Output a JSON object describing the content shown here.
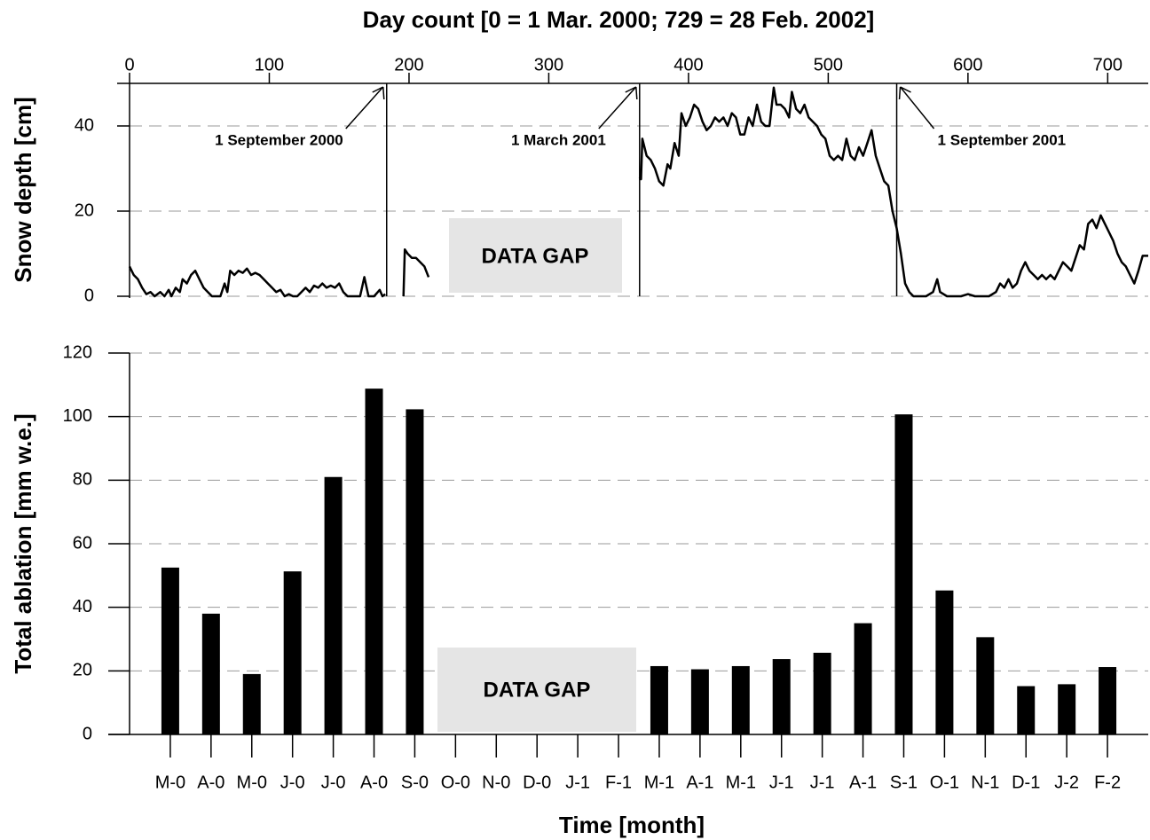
{
  "chart_data": [
    {
      "type": "line",
      "title": "Day count [0 = 1 Mar. 2000; 729 = 28 Feb. 2002]",
      "y_label": "Snow depth [cm]",
      "x_axis_position": "top",
      "x": [
        0,
        3,
        6,
        9,
        12,
        15,
        18,
        22,
        25,
        28,
        30,
        33,
        36,
        38,
        41,
        44,
        47,
        50,
        53,
        56,
        59,
        62,
        65,
        68,
        70,
        72,
        75,
        78,
        81,
        84,
        87,
        90,
        93,
        96,
        99,
        102,
        105,
        108,
        111,
        114,
        117,
        120,
        123,
        126,
        129,
        132,
        135,
        138,
        141,
        144,
        147,
        150,
        153,
        156,
        160,
        165,
        168,
        171,
        175,
        179,
        181,
        183,
        189,
        196,
        197,
        199,
        202,
        205,
        208,
        211,
        214,
        290,
        365,
        366,
        367,
        370,
        373,
        376,
        379,
        382,
        385,
        387,
        390,
        393,
        395,
        398,
        401,
        404,
        407,
        410,
        413,
        416,
        419,
        422,
        425,
        428,
        431,
        434,
        437,
        440,
        443,
        446,
        449,
        452,
        455,
        458,
        461,
        463,
        466,
        469,
        472,
        474,
        477,
        480,
        483,
        486,
        489,
        492,
        495,
        498,
        501,
        504,
        507,
        510,
        513,
        516,
        519,
        522,
        525,
        528,
        531,
        534,
        537,
        540,
        543,
        546,
        549,
        552,
        555,
        558,
        561,
        565,
        570,
        575,
        578,
        580,
        585,
        590,
        595,
        600,
        605,
        610,
        615,
        620,
        623,
        626,
        629,
        632,
        635,
        638,
        641,
        644,
        647,
        650,
        653,
        656,
        659,
        662,
        665,
        668,
        671,
        674,
        677,
        680,
        683,
        686,
        689,
        692,
        695,
        698,
        701,
        704,
        707,
        710,
        713,
        716,
        719,
        722,
        725,
        729
      ],
      "values": [
        7,
        5,
        4,
        2,
        0.5,
        1,
        0,
        1,
        0,
        1.5,
        0,
        2,
        1,
        4,
        3,
        5,
        6,
        4,
        2,
        1,
        0,
        0,
        0,
        3,
        1,
        6,
        5,
        6,
        5.5,
        6.5,
        5,
        5.5,
        5,
        4,
        3,
        2,
        1,
        1.5,
        0,
        0.5,
        0,
        0,
        1,
        2,
        1,
        2.5,
        2,
        3,
        2,
        2.5,
        2,
        3,
        1,
        0,
        0,
        0,
        4.5,
        0,
        0,
        1.5,
        0,
        0.5,
        null,
        0,
        11,
        10,
        9,
        9,
        8,
        7,
        4.5,
        null,
        28,
        27.5,
        37,
        33,
        32,
        30,
        27,
        26,
        31,
        30,
        36,
        33,
        43,
        40,
        42,
        45,
        44,
        41,
        39,
        40,
        42,
        41,
        42,
        40,
        43,
        42,
        38,
        38,
        42,
        40,
        45,
        41,
        40,
        40,
        49,
        45,
        45,
        44,
        42,
        48,
        44,
        43,
        45,
        42,
        41,
        40,
        38,
        37,
        33,
        32,
        33,
        32,
        37,
        33,
        32,
        35,
        33,
        36,
        39,
        33,
        30,
        27,
        26,
        20,
        16,
        10,
        3,
        1,
        0,
        0,
        0,
        1,
        4,
        1,
        0,
        0,
        0,
        0.5,
        0,
        0,
        0,
        1,
        3,
        2,
        4,
        2,
        3,
        6,
        8,
        6,
        5,
        4,
        5,
        4,
        5,
        4,
        6,
        8,
        7,
        6,
        9,
        12,
        11,
        17,
        18,
        16,
        19,
        17,
        15,
        13,
        10,
        8,
        7,
        5,
        3,
        6,
        9.5,
        9.5
      ],
      "color": "#000000",
      "xlim": [
        0,
        729
      ],
      "xticks": [
        0,
        100,
        200,
        300,
        400,
        500,
        600,
        700
      ],
      "ylim": [
        0,
        50
      ],
      "yticks": [
        0,
        20,
        40
      ],
      "grid": true,
      "markers": [
        {
          "label": "1 September 2000",
          "x": 184
        },
        {
          "label": "1 March 2001",
          "x": 365
        },
        {
          "label": "1 September 2001",
          "x": 549
        }
      ],
      "annotation": "DATA GAP"
    },
    {
      "type": "bar",
      "x_label": "Time [month]",
      "y_label": "Total ablation [mm w.e.]",
      "categories": [
        "M-0",
        "A-0",
        "M-0",
        "J-0",
        "J-0",
        "A-0",
        "S-0",
        "O-0",
        "N-0",
        "D-0",
        "J-1",
        "F-1",
        "M-1",
        "A-1",
        "M-1",
        "J-1",
        "J-1",
        "A-1",
        "S-1",
        "O-1",
        "N-1",
        "D-1",
        "J-2",
        "F-2"
      ],
      "values": [
        52.5,
        38,
        19,
        51.3,
        81,
        108.8,
        102.3,
        null,
        null,
        null,
        null,
        null,
        21.5,
        20.5,
        21.5,
        23.7,
        25.7,
        35,
        100.7,
        45.3,
        30.6,
        15.2,
        15.8,
        21.2
      ],
      "color": "#000000",
      "ylim": [
        0,
        120
      ],
      "yticks": [
        0,
        20,
        40,
        60,
        80,
        100,
        120
      ],
      "grid": true,
      "annotation": "DATA GAP"
    }
  ]
}
